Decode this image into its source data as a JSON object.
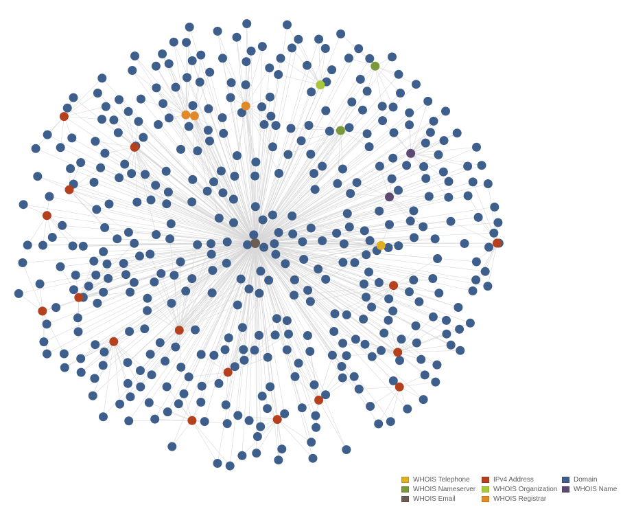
{
  "graph": {
    "center_node": {
      "type": "WHOIS Email"
    },
    "node_counts": {
      "Domain": 420,
      "IPv4 Address": 16,
      "WHOIS Registrar": 3,
      "WHOIS Organization": 1,
      "WHOIS Nameserver": 2,
      "WHOIS Name": 2,
      "WHOIS Email": 1,
      "WHOIS Telephone": 1
    },
    "seed": 7
  },
  "legend": {
    "items": [
      {
        "label": "WHOIS Telephone",
        "color": "#e0b020"
      },
      {
        "label": "WHOIS Nameserver",
        "color": "#7a9a3a"
      },
      {
        "label": "WHOIS Email",
        "color": "#6b5e55"
      },
      {
        "label": "IPv4 Address",
        "color": "#b5401e"
      },
      {
        "label": "WHOIS Organization",
        "color": "#a8c83a"
      },
      {
        "label": "WHOIS Registrar",
        "color": "#e08a2a"
      },
      {
        "label": "Domain",
        "color": "#3e5f8c"
      },
      {
        "label": "WHOIS Name",
        "color": "#5c4a73"
      }
    ]
  },
  "colors": {
    "edge": "#d8d8d8",
    "background": "#ffffff"
  }
}
